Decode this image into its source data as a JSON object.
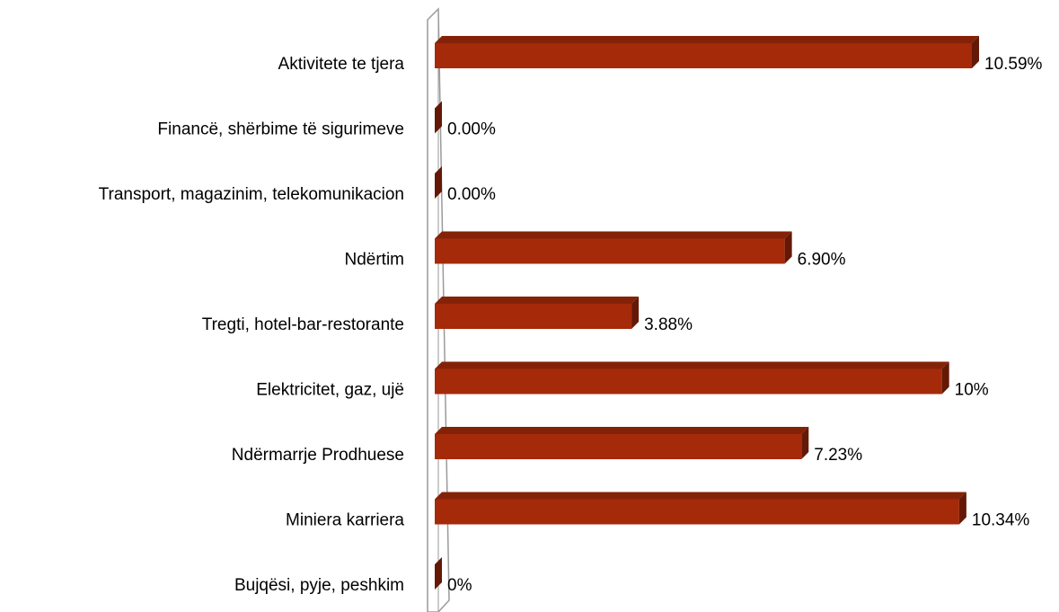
{
  "chart_data": {
    "type": "bar3d_horizontal",
    "categories": [
      "Aktivitete te tjera",
      "Financë, shërbime të sigurimeve",
      "Transport, magazinim, telekomunikacion",
      "Ndërtim",
      "Tregti, hotel-bar-restorante",
      "Elektricitet, gaz, ujë",
      "Ndërmarrje Prodhuese",
      "Miniera karriera",
      "Bujqësi, pyje, peshkim"
    ],
    "values": [
      10.59,
      0.0,
      0.0,
      6.9,
      3.88,
      10,
      7.23,
      10.34,
      0
    ],
    "value_labels": [
      "10.59%",
      "0.00%",
      "0.00%",
      "6.90%",
      "3.88%",
      "10%",
      "7.23%",
      "10.34%",
      "0%"
    ],
    "color": "#a52a0a"
  }
}
